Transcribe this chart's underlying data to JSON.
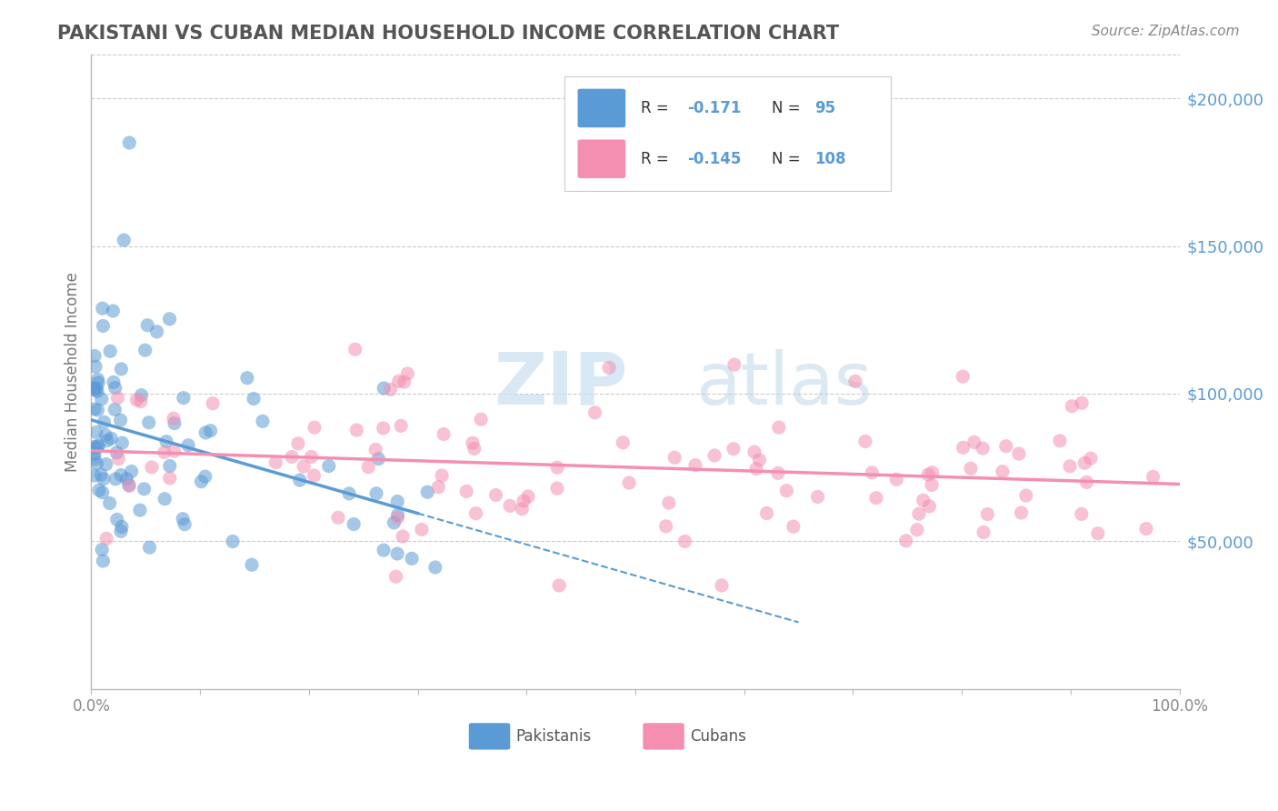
{
  "title": "PAKISTANI VS CUBAN MEDIAN HOUSEHOLD INCOME CORRELATION CHART",
  "source": "Source: ZipAtlas.com",
  "ylabel": "Median Household Income",
  "y_ticks": [
    50000,
    100000,
    150000,
    200000
  ],
  "y_tick_labels": [
    "$50,000",
    "$100,000",
    "$150,000",
    "$200,000"
  ],
  "ylim": [
    0,
    215000
  ],
  "xlim": [
    0,
    100
  ],
  "pakistani_color": "#5b9bd5",
  "cuban_color": "#f48fb1",
  "pakistani_R": -0.171,
  "pakistani_N": 95,
  "cuban_R": -0.145,
  "cuban_N": 108,
  "legend_label_1": "Pakistanis",
  "legend_label_2": "Cubans",
  "watermark_zip": "ZIP",
  "watermark_atlas": "atlas",
  "background_color": "#ffffff",
  "grid_color": "#cccccc",
  "title_color": "#555555",
  "tick_color": "#5b9bd5",
  "source_color": "#888888"
}
